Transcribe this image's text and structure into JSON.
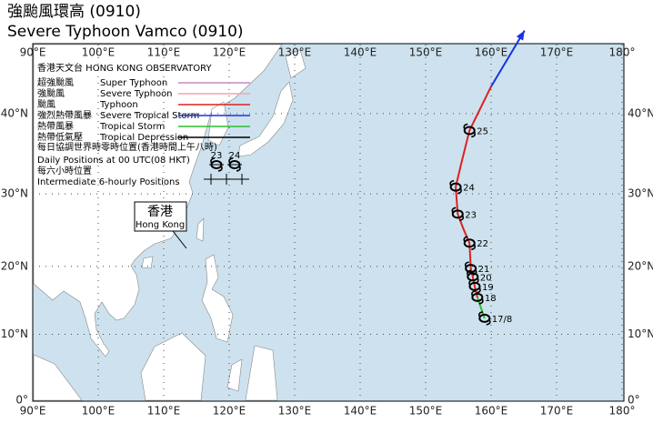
{
  "title": {
    "zh": "強颱風環高 (0910)",
    "en": "Severe Typhoon Vamco (0910)"
  },
  "map": {
    "lon_labels": [
      "90°E",
      "100°E",
      "110°E",
      "120°E",
      "130°E",
      "140°E",
      "150°E",
      "160°E",
      "170°E",
      "180°"
    ],
    "lat_labels": [
      "0°",
      "10°N",
      "20°N",
      "30°N",
      "40°N"
    ],
    "legend": {
      "header": "香港天文台 HONG KONG OBSERVATORY",
      "rows": [
        {
          "zh": "超強颱風",
          "en": "Super Typhoon",
          "color": "#c48cc4"
        },
        {
          "zh": "強颱風",
          "en": "Severe Typhoon",
          "color": "#f2a3b3"
        },
        {
          "zh": "颱風",
          "en": "Typhoon",
          "color": "#e02020"
        },
        {
          "zh": "強烈熱帶風暴",
          "en": "Severe Tropical Storm",
          "color": "#1a34e0"
        },
        {
          "zh": "熱帶風暴",
          "en": "Tropical Storm",
          "color": "#2cbf2c"
        },
        {
          "zh": "熱帶低氣壓",
          "en": "Tropical Depression",
          "color": "#000000"
        }
      ],
      "daily_zh": "每日協調世界時零時位置(香港時間上午八時)",
      "daily_en": "Daily Positions at 00 UTC(08 HKT)",
      "daily_samples": [
        "23",
        "24"
      ],
      "six_zh": "每六小時位置",
      "six_en": "Intermediate 6-hourly Positions"
    },
    "hk_label": {
      "zh": "香港",
      "en": "Hong Kong"
    },
    "segments": [
      {
        "color": "#2cbf2c",
        "lon": [
          159.0,
          157.9
        ],
        "lat": [
          12.4,
          15.5
        ]
      },
      {
        "color": "#e02020",
        "lon": [
          157.9,
          157.5,
          157.2,
          156.9,
          156.7,
          155.8,
          154.9,
          154.6,
          155.4,
          156.7,
          160.0
        ],
        "lat": [
          15.5,
          17.1,
          18.5,
          19.7,
          23.3,
          25.2,
          27.3,
          30.9,
          33.8,
          38.0,
          43.1
        ]
      },
      {
        "color": "#1a34e0",
        "lon": [
          160.0,
          165.1
        ],
        "lat": [
          43.1,
          49.0
        ]
      }
    ],
    "positions": [
      {
        "label": "17/8",
        "lon": 159.0,
        "lat": 12.4
      },
      {
        "label": "18",
        "lon": 157.9,
        "lat": 15.5
      },
      {
        "label": "19",
        "lon": 157.5,
        "lat": 17.1
      },
      {
        "label": "20",
        "lon": 157.2,
        "lat": 18.5
      },
      {
        "label": "21",
        "lon": 156.9,
        "lat": 19.7
      },
      {
        "label": "22",
        "lon": 156.7,
        "lat": 23.3
      },
      {
        "label": "23",
        "lon": 154.9,
        "lat": 27.3
      },
      {
        "label": "24",
        "lon": 154.6,
        "lat": 30.9
      },
      {
        "label": "25",
        "lon": 156.7,
        "lat": 38.0
      }
    ]
  }
}
